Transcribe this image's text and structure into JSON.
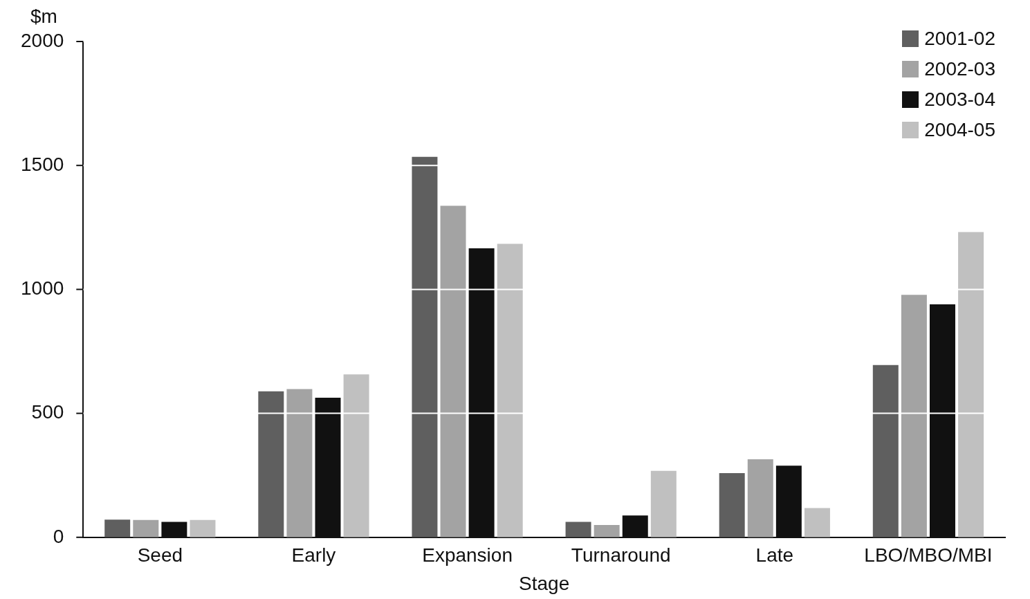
{
  "chart_data": {
    "type": "bar",
    "xlabel": "Stage",
    "ylabel": "$m",
    "categories": [
      "Seed",
      "Early",
      "Expansion",
      "Turnaround",
      "Late",
      "LBO/MBO/MBI"
    ],
    "series": [
      {
        "name": "2001-02",
        "color": "#5f5f5f",
        "values": [
          71,
          589,
          1535,
          62,
          259,
          695
        ]
      },
      {
        "name": "2002-03",
        "color": "#a3a3a3",
        "values": [
          70,
          598,
          1337,
          50,
          315,
          978
        ]
      },
      {
        "name": "2003-04",
        "color": "#111111",
        "values": [
          62,
          563,
          1166,
          88,
          289,
          940
        ]
      },
      {
        "name": "2004-05",
        "color": "#c0c0c0",
        "values": [
          70,
          657,
          1184,
          268,
          118,
          1231
        ]
      }
    ],
    "ylim": [
      0,
      2000
    ],
    "yticks": [
      0,
      500,
      1000,
      1500,
      2000
    ],
    "grid": "y",
    "legend": "top right"
  }
}
